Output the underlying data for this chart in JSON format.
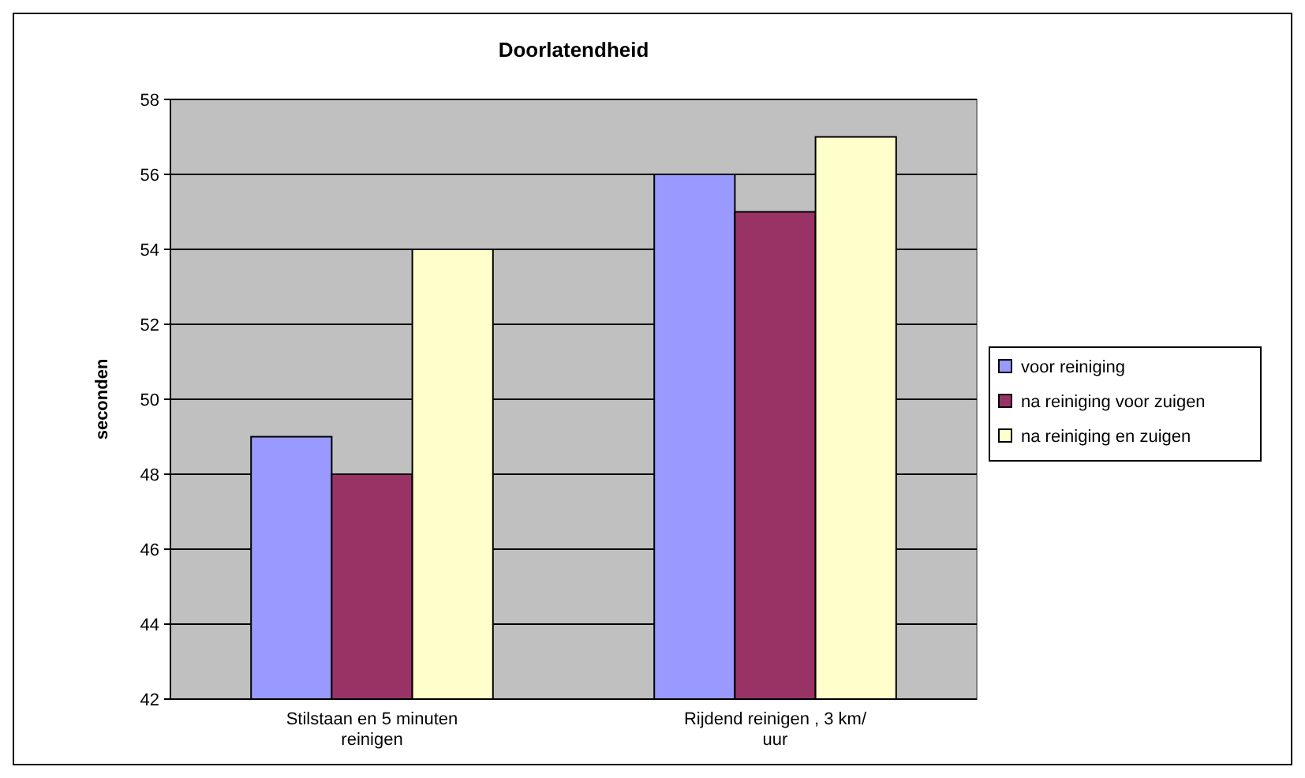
{
  "chart_data": {
    "type": "bar",
    "title": "Doorlatendheid",
    "ylabel": "seconden",
    "categories": [
      "Stilstaan en 5 minuten reinigen",
      "Rijdend reinigen , 3 km/ uur"
    ],
    "series": [
      {
        "name": "voor reiniging",
        "color": "#9999ff",
        "values": [
          49,
          56
        ]
      },
      {
        "name": "na reiniging voor zuigen",
        "color": "#993366",
        "values": [
          48,
          55
        ]
      },
      {
        "name": "na reiniging en zuigen",
        "color": "#ffffcc",
        "values": [
          54,
          57
        ]
      }
    ],
    "ylim": [
      42,
      58
    ],
    "yticks": [
      42,
      44,
      46,
      48,
      50,
      52,
      54,
      56,
      58
    ],
    "grid": "y",
    "legend": "right"
  }
}
